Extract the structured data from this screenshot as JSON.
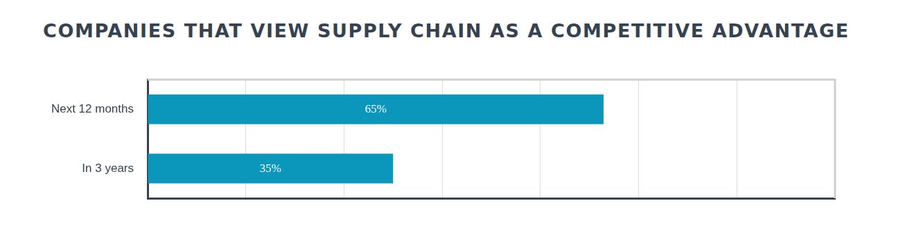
{
  "chart_data": {
    "type": "bar",
    "orientation": "horizontal",
    "title": "COMPANIES THAT VIEW SUPPLY CHAIN AS A COMPETITIVE ADVANTAGE",
    "categories": [
      "Next 12 months",
      "In 3 years"
    ],
    "values": [
      65,
      35
    ],
    "value_labels": [
      "65%",
      "35%"
    ],
    "color": "#0b97bb",
    "xlim": [
      0,
      98
    ],
    "xticks": [
      0,
      14,
      28,
      42,
      56,
      70,
      84,
      98
    ],
    "grid": true,
    "data_labels": true,
    "tick_labels": "y"
  }
}
